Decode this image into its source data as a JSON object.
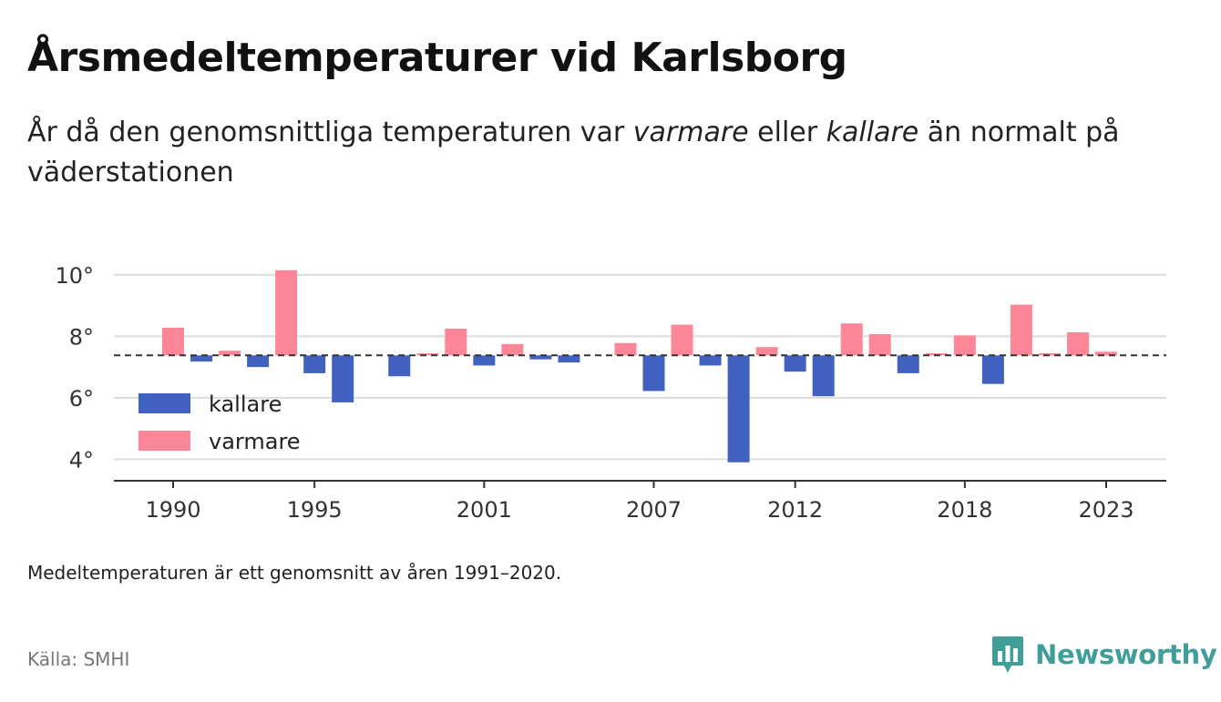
{
  "title": "Årsmedeltemperaturer vid Karlsborg",
  "subtitle": {
    "part1": "År då den genomsnittliga temperaturen var ",
    "warmer": "varmare",
    "part2": " eller ",
    "colder": "kallare",
    "part3": " än normalt på väderstationen"
  },
  "note": "Medeltemperaturen är ett genomsnitt av åren 1991–2020.",
  "source": "Källa: SMHI",
  "brand": "Newsworthy",
  "colors": {
    "colder": "#4262c1",
    "warmer": "#fd8698",
    "grid": "#dddddd",
    "axis": "#333333",
    "reference_line": "#333333",
    "brand": "#3f9e98"
  },
  "chart_data": {
    "type": "bar",
    "x": [
      1990,
      1991,
      1992,
      1993,
      1994,
      1995,
      1996,
      1997,
      1998,
      1999,
      2000,
      2001,
      2002,
      2003,
      2004,
      2005,
      2006,
      2007,
      2008,
      2009,
      2010,
      2011,
      2012,
      2013,
      2014,
      2015,
      2016,
      2017,
      2018,
      2019,
      2020,
      2021,
      2022,
      2023
    ],
    "values": [
      8.28,
      7.18,
      7.53,
      7.0,
      10.15,
      6.8,
      5.85,
      null,
      6.7,
      7.45,
      8.25,
      7.05,
      7.75,
      7.25,
      7.15,
      null,
      7.78,
      6.22,
      8.38,
      7.05,
      3.9,
      7.65,
      6.85,
      6.05,
      8.42,
      8.07,
      6.8,
      7.45,
      8.03,
      6.45,
      9.03,
      7.45,
      8.13,
      7.5
    ],
    "baseline": 7.38,
    "categories_legend": [
      "kallare",
      "varmare"
    ],
    "x_ticks": [
      1990,
      1995,
      2001,
      2007,
      2012,
      2018,
      2023
    ],
    "y_ticks": [
      4,
      6,
      8,
      10
    ],
    "y_tick_suffix": "°",
    "ylim": [
      3.3,
      10.5
    ],
    "grid": true,
    "legend_position": "bottom-left",
    "xlabel": "",
    "ylabel": ""
  }
}
